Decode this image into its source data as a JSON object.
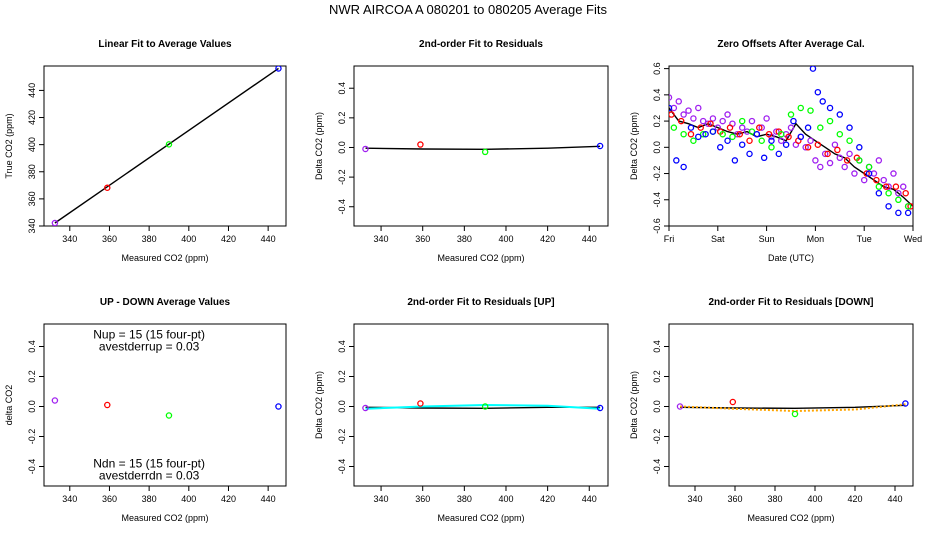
{
  "figure": {
    "title": "NWR   AIRCOA A   080201 to 080205   Average Fits"
  },
  "colors": {
    "axes": "#000000",
    "purple": "#a020f0",
    "red": "#ff0000",
    "green": "#00ff00",
    "blue": "#0000ff",
    "black": "#000000",
    "cyan": "#00ffff",
    "orange": "#ffa500"
  },
  "chart_data": [
    {
      "id": "p1",
      "type": "scatter",
      "title": "Linear Fit to Average Values",
      "xlabel": "Measured CO2 (ppm)",
      "ylabel": "True CO2 (ppm)",
      "xlim": [
        327,
        449
      ],
      "ylim": [
        340,
        458
      ],
      "xticks": [
        340,
        360,
        380,
        400,
        420,
        440
      ],
      "yticks": [
        340,
        360,
        380,
        400,
        420,
        440
      ],
      "points": [
        {
          "x": 332.5,
          "y": 342.2,
          "color": "purple"
        },
        {
          "x": 358.9,
          "y": 368.2,
          "color": "red"
        },
        {
          "x": 390.0,
          "y": 400.2,
          "color": "green"
        },
        {
          "x": 445.2,
          "y": 456.2,
          "color": "blue"
        }
      ],
      "lines": [
        {
          "x": [
            332.5,
            445.2
          ],
          "y": [
            342.2,
            456.2
          ],
          "color": "black"
        }
      ]
    },
    {
      "id": "p2",
      "type": "scatter",
      "title": "2nd-order Fit to Residuals",
      "xlabel": "Measured CO2 (ppm)",
      "ylabel": "Delta CO2 (ppm)",
      "xlim": [
        327,
        449
      ],
      "ylim": [
        -0.53,
        0.55
      ],
      "xticks": [
        340,
        360,
        380,
        400,
        420,
        440
      ],
      "yticks": [
        -0.4,
        -0.2,
        0.0,
        0.2,
        0.4
      ],
      "points": [
        {
          "x": 332.5,
          "y": -0.01,
          "color": "purple"
        },
        {
          "x": 358.9,
          "y": 0.02,
          "color": "red"
        },
        {
          "x": 390.0,
          "y": -0.03,
          "color": "green"
        },
        {
          "x": 445.2,
          "y": 0.01,
          "color": "blue"
        }
      ],
      "lines": [
        {
          "x": [
            332.5,
            360,
            390,
            420,
            445.2
          ],
          "y": [
            -0.005,
            -0.01,
            -0.012,
            -0.005,
            0.008
          ],
          "color": "black"
        }
      ]
    },
    {
      "id": "p3",
      "type": "scatter",
      "title": "Zero Offsets After Average Cal.",
      "xlabel": "Date (UTC)",
      "ylabel": "Delta CO2 (ppm)",
      "xlim": [
        0,
        5
      ],
      "ylim": [
        -0.6,
        0.62
      ],
      "xticks": [
        0,
        1,
        2,
        3,
        4,
        5
      ],
      "xticklabels": [
        "Fri",
        "Sat",
        "Sun",
        "Mon",
        "Tue",
        "Wed"
      ],
      "yticks": [
        -0.6,
        -0.4,
        -0.2,
        0.0,
        0.2,
        0.4,
        0.6
      ],
      "series": [
        {
          "color": "purple",
          "x": [
            0,
            0.1,
            0.2,
            0.3,
            0.4,
            0.5,
            0.6,
            0.7,
            0.8,
            0.9,
            1.0,
            1.1,
            1.2,
            1.3,
            1.4,
            1.5,
            1.6,
            1.7,
            1.8,
            1.9,
            2.0,
            2.1,
            2.2,
            2.3,
            2.4,
            2.5,
            2.6,
            2.7,
            2.8,
            2.9,
            3.0,
            3.1,
            3.2,
            3.3,
            3.4,
            3.5,
            3.6,
            3.7,
            3.8,
            3.9,
            4.0,
            4.1,
            4.2,
            4.3,
            4.4,
            4.5,
            4.6,
            4.7,
            4.8,
            4.9
          ],
          "y": [
            0.38,
            0.3,
            0.35,
            0.25,
            0.28,
            0.22,
            0.3,
            0.2,
            0.18,
            0.22,
            0.15,
            0.2,
            0.25,
            0.18,
            0.1,
            0.15,
            0.12,
            0.2,
            0.1,
            0.15,
            0.22,
            0.08,
            0.12,
            0.05,
            0.1,
            0.15,
            0.02,
            0.08,
            0.0,
            0.05,
            -0.1,
            -0.15,
            -0.05,
            -0.12,
            0.02,
            -0.08,
            -0.15,
            -0.05,
            -0.2,
            -0.1,
            -0.25,
            -0.15,
            -0.2,
            -0.1,
            -0.25,
            -0.3,
            -0.2,
            -0.35,
            -0.3,
            -0.45
          ]
        },
        {
          "color": "red",
          "x": [
            0.05,
            0.25,
            0.45,
            0.65,
            0.85,
            1.05,
            1.25,
            1.45,
            1.65,
            1.85,
            2.05,
            2.25,
            2.45,
            2.65,
            2.85,
            3.05,
            3.25,
            3.45,
            3.65,
            3.85,
            4.05,
            4.25,
            4.45,
            4.65,
            4.85,
            4.95
          ],
          "y": [
            0.25,
            0.2,
            0.1,
            0.15,
            0.18,
            0.12,
            0.15,
            0.1,
            0.05,
            0.15,
            0.1,
            0.12,
            0.08,
            0.05,
            0.0,
            0.02,
            -0.05,
            -0.02,
            -0.1,
            -0.08,
            -0.2,
            -0.25,
            -0.3,
            -0.3,
            -0.35,
            -0.45
          ]
        },
        {
          "color": "green",
          "x": [
            0.1,
            0.3,
            0.5,
            0.7,
            0.9,
            1.1,
            1.3,
            1.5,
            1.7,
            1.9,
            2.1,
            2.3,
            2.5,
            2.7,
            2.9,
            3.1,
            3.3,
            3.5,
            3.7,
            3.9,
            4.1,
            4.3,
            4.5,
            4.7,
            4.9
          ],
          "y": [
            0.15,
            0.1,
            0.05,
            0.1,
            0.12,
            0.1,
            0.08,
            0.2,
            0.12,
            0.05,
            0.0,
            0.1,
            0.25,
            0.3,
            0.28,
            0.15,
            0.2,
            0.1,
            0.05,
            -0.1,
            -0.15,
            -0.3,
            -0.35,
            -0.4,
            -0.45
          ]
        },
        {
          "color": "blue",
          "x": [
            0.0,
            0.15,
            0.3,
            0.45,
            0.6,
            0.75,
            0.9,
            1.05,
            1.2,
            1.35,
            1.5,
            1.65,
            1.8,
            1.95,
            2.1,
            2.25,
            2.4,
            2.55,
            2.7,
            2.85,
            2.95,
            3.05,
            3.15,
            3.3,
            3.5,
            3.7,
            3.9,
            4.1,
            4.3,
            4.5,
            4.7,
            4.9
          ],
          "y": [
            0.3,
            -0.1,
            -0.15,
            0.15,
            0.08,
            0.1,
            0.12,
            0.0,
            0.05,
            -0.1,
            0.02,
            -0.05,
            0.1,
            -0.08,
            0.05,
            -0.05,
            0.02,
            0.2,
            0.08,
            0.15,
            0.6,
            0.42,
            0.35,
            0.3,
            0.25,
            0.15,
            0.0,
            -0.2,
            -0.35,
            -0.45,
            -0.5,
            -0.5
          ]
        }
      ],
      "lines": [
        {
          "x": [
            0,
            0.2,
            0.4,
            0.6,
            0.8,
            1.0,
            1.2,
            1.4,
            1.6,
            1.8,
            2.0,
            2.2,
            2.4,
            2.6,
            2.8,
            3.0,
            3.2,
            3.4,
            3.6,
            3.8,
            4.0,
            4.2,
            4.4,
            4.6,
            4.8,
            5.0
          ],
          "y": [
            0.3,
            0.2,
            0.18,
            0.15,
            0.18,
            0.15,
            0.12,
            0.1,
            0.12,
            0.08,
            0.1,
            0.08,
            0.05,
            0.18,
            0.1,
            0.05,
            0.0,
            -0.05,
            -0.08,
            -0.15,
            -0.2,
            -0.25,
            -0.3,
            -0.32,
            -0.38,
            -0.45
          ],
          "color": "black"
        }
      ]
    },
    {
      "id": "p4",
      "type": "scatter",
      "title": "UP - DOWN Average Values",
      "xlabel": "Measured CO2 (ppm)",
      "ylabel": "delta CO2",
      "xlim": [
        327,
        449
      ],
      "ylim": [
        -0.53,
        0.55
      ],
      "xticks": [
        340,
        360,
        380,
        400,
        420,
        440
      ],
      "yticks": [
        -0.4,
        -0.2,
        0.0,
        0.2,
        0.4
      ],
      "points": [
        {
          "x": 332.5,
          "y": 0.04,
          "color": "purple"
        },
        {
          "x": 358.9,
          "y": 0.01,
          "color": "red"
        },
        {
          "x": 390.0,
          "y": -0.06,
          "color": "green"
        },
        {
          "x": 445.2,
          "y": 0.0,
          "color": "blue"
        }
      ],
      "annotations": [
        {
          "text": "Nup = 15 (15 four-pt)",
          "x": 380,
          "y": 0.48
        },
        {
          "text": "avestderrup =  0.03",
          "x": 380,
          "y": 0.4
        },
        {
          "text": "Ndn = 15 (15 four-pt)",
          "x": 380,
          "y": -0.38
        },
        {
          "text": "avestderrdn =  0.03",
          "x": 380,
          "y": -0.46
        }
      ]
    },
    {
      "id": "p5",
      "type": "scatter",
      "title": "2nd-order Fit to Residuals [UP]",
      "xlabel": "Measured CO2 (ppm)",
      "ylabel": "Delta CO2 (ppm)",
      "xlim": [
        327,
        449
      ],
      "ylim": [
        -0.53,
        0.55
      ],
      "xticks": [
        340,
        360,
        380,
        400,
        420,
        440
      ],
      "yticks": [
        -0.4,
        -0.2,
        0.0,
        0.2,
        0.4
      ],
      "points": [
        {
          "x": 332.5,
          "y": -0.01,
          "color": "purple"
        },
        {
          "x": 358.9,
          "y": 0.02,
          "color": "red"
        },
        {
          "x": 390.0,
          "y": 0.0,
          "color": "green"
        },
        {
          "x": 445.2,
          "y": -0.01,
          "color": "blue"
        }
      ],
      "lines": [
        {
          "x": [
            332.5,
            360,
            390,
            420,
            445.2
          ],
          "y": [
            -0.005,
            -0.01,
            -0.012,
            -0.005,
            -0.005
          ],
          "color": "black"
        },
        {
          "x": [
            332.5,
            360,
            390,
            420,
            445.2
          ],
          "y": [
            -0.015,
            0.0,
            0.01,
            0.005,
            -0.015
          ],
          "color": "cyan"
        }
      ]
    },
    {
      "id": "p6",
      "type": "scatter",
      "title": "2nd-order Fit to Residuals [DOWN]",
      "xlabel": "Measured CO2 (ppm)",
      "ylabel": "Delta CO2 (ppm)",
      "xlim": [
        327,
        449
      ],
      "ylim": [
        -0.53,
        0.55
      ],
      "xticks": [
        340,
        360,
        380,
        400,
        420,
        440
      ],
      "yticks": [
        -0.4,
        -0.2,
        0.0,
        0.2,
        0.4
      ],
      "points": [
        {
          "x": 332.5,
          "y": 0.0,
          "color": "purple"
        },
        {
          "x": 358.9,
          "y": 0.03,
          "color": "red"
        },
        {
          "x": 390.0,
          "y": -0.05,
          "color": "green"
        },
        {
          "x": 445.2,
          "y": 0.02,
          "color": "blue"
        }
      ],
      "lines": [
        {
          "x": [
            332.5,
            360,
            390,
            420,
            445.2
          ],
          "y": [
            -0.005,
            -0.01,
            -0.012,
            -0.005,
            0.008
          ],
          "color": "black"
        },
        {
          "x": [
            332.5,
            360,
            390,
            420,
            445.2
          ],
          "y": [
            0.0,
            -0.015,
            -0.03,
            -0.02,
            0.015
          ],
          "color": "orange",
          "dashed": true
        }
      ]
    }
  ]
}
